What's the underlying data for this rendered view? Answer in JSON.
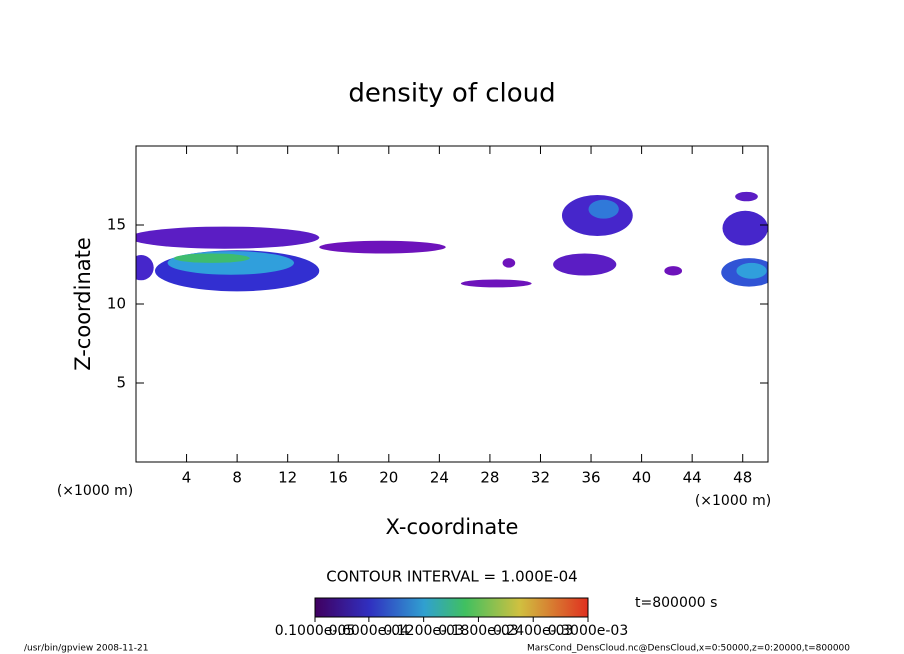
{
  "chart_data": {
    "type": "contour",
    "title": "density of cloud",
    "xlabel": "X-coordinate",
    "ylabel": "Z-coordinate",
    "xunit": "(×1000 m)",
    "yunit": "(×1000 m)",
    "xlim": [
      0,
      50
    ],
    "ylim": [
      0,
      20
    ],
    "xticks": [
      4,
      8,
      12,
      16,
      20,
      24,
      28,
      32,
      36,
      40,
      44,
      48
    ],
    "yticks": [
      5,
      10,
      15
    ],
    "cells": [
      {
        "x": 7,
        "z": 14.2,
        "rx": 7.5,
        "rz": 0.7,
        "value": 4e-05
      },
      {
        "x": 19.5,
        "z": 13.6,
        "rx": 5,
        "rz": 0.4,
        "value": 3e-05
      },
      {
        "x": 8,
        "z": 12.1,
        "rx": 6.5,
        "rz": 1.3,
        "value": 6e-05
      },
      {
        "x": 0.4,
        "z": 12.3,
        "rx": 1,
        "rz": 0.8,
        "value": 5e-05
      },
      {
        "x": 7.5,
        "z": 12.6,
        "rx": 5,
        "rz": 0.75,
        "value": 0.00012
      },
      {
        "x": 6,
        "z": 12.9,
        "rx": 3,
        "rz": 0.3,
        "value": 0.00016
      },
      {
        "x": 28.5,
        "z": 11.3,
        "rx": 2.8,
        "rz": 0.25,
        "value": 3e-05
      },
      {
        "x": 29.5,
        "z": 12.6,
        "rx": 0.5,
        "rz": 0.3,
        "value": 3e-05
      },
      {
        "x": 35.5,
        "z": 12.5,
        "rx": 2.5,
        "rz": 0.7,
        "value": 4e-05
      },
      {
        "x": 36.5,
        "z": 15.6,
        "rx": 2.8,
        "rz": 1.3,
        "value": 5e-05
      },
      {
        "x": 37,
        "z": 16,
        "rx": 1.2,
        "rz": 0.6,
        "value": 0.0001
      },
      {
        "x": 42.5,
        "z": 12.1,
        "rx": 0.7,
        "rz": 0.3,
        "value": 3e-05
      },
      {
        "x": 48.2,
        "z": 14.8,
        "rx": 1.8,
        "rz": 1.1,
        "value": 5e-05
      },
      {
        "x": 48.3,
        "z": 16.8,
        "rx": 0.9,
        "rz": 0.3,
        "value": 4e-05
      },
      {
        "x": 48.5,
        "z": 12,
        "rx": 2.2,
        "rz": 0.9,
        "value": 8e-05
      },
      {
        "x": 48.7,
        "z": 12.1,
        "rx": 1.2,
        "rz": 0.5,
        "value": 0.00012
      }
    ],
    "contour_note": "CONTOUR INTERVAL = 1.000E-04",
    "time_note": "t=800000 s",
    "clim": [
      1e-06,
      0.0003
    ],
    "cticks": [
      {
        "value": 1e-06,
        "label": "0.1000e-05"
      },
      {
        "value": 6e-05,
        "label": "0.6000e-04"
      },
      {
        "value": 0.00012,
        "label": "0.1200e-03"
      },
      {
        "value": 0.00018,
        "label": "0.1800e-03"
      },
      {
        "value": 0.00024,
        "label": "0.2400e-03"
      },
      {
        "value": 0.0003,
        "label": "0.3000e-03"
      }
    ],
    "footer_left": "/usr/bin/gpview  2008-11-21",
    "footer_right": "MarsCond_DensCloud.nc@DensCloud,x=0:50000,z=0:20000,t=800000"
  }
}
